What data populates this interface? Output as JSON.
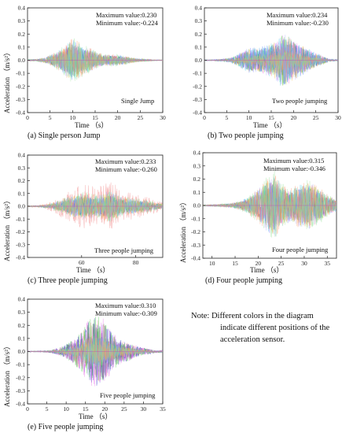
{
  "note": {
    "lines": [
      "Note: Different colors in the diagram",
      "indicate different positions of  the",
      "acceleration sensor."
    ]
  },
  "colors": {
    "sensors": [
      "#f08080",
      "#6f6fe8",
      "#1a1ab0",
      "#32c832",
      "#e860e8",
      "#f0c040",
      "#40c8e8",
      "#a0a0ff",
      "#ff9060",
      "#90e090"
    ]
  },
  "chart_data": [
    {
      "type": "line",
      "caption": "(a)  Single person Jump",
      "inner_label": "Single Jump",
      "annotations": [
        "Maximum value:0.230",
        "Minimum value:-0.224"
      ],
      "xlabel": "Time （s）",
      "ylabel": "Acceleration （m/s²）",
      "xlim": [
        0,
        30
      ],
      "ylim": [
        -0.4,
        0.4
      ],
      "xticks": [
        0,
        5,
        10,
        15,
        20,
        25,
        30
      ],
      "yticks": [
        -0.4,
        -0.3,
        -0.2,
        -0.1,
        0.0,
        0.1,
        0.2,
        0.3,
        0.4
      ],
      "series": [
        {
          "envelope": [
            [
              0,
              0.008
            ],
            [
              2,
              0.01
            ],
            [
              4,
              0.03
            ],
            [
              6,
              0.08
            ],
            [
              8,
              0.14
            ],
            [
              9.5,
              0.22
            ],
            [
              11,
              0.2
            ],
            [
              12.5,
              0.15
            ],
            [
              14,
              0.12
            ],
            [
              15.5,
              0.08
            ],
            [
              17,
              0.06
            ],
            [
              19,
              0.06
            ],
            [
              21,
              0.05
            ],
            [
              23,
              0.03
            ],
            [
              25,
              0.015
            ],
            [
              27,
              0.01
            ],
            [
              28.5,
              0.005
            ]
          ]
        }
      ]
    },
    {
      "type": "line",
      "caption": "(b)  Two people jumping",
      "inner_label": "Two people jumping",
      "annotations": [
        "Maximum value:0.234",
        "Minimum value:-0.230"
      ],
      "xlabel": "Time （s）",
      "ylabel": "",
      "xlim": [
        0,
        30
      ],
      "ylim": [
        -0.4,
        0.4
      ],
      "xticks": [
        0,
        5,
        10,
        15,
        20,
        25,
        30
      ],
      "yticks": [
        -0.4,
        -0.3,
        -0.2,
        -0.1,
        0.0,
        0.1,
        0.2,
        0.3,
        0.4
      ],
      "series": [
        {
          "envelope": [
            [
              0,
              0.005
            ],
            [
              2,
              0.005
            ],
            [
              4,
              0.01
            ],
            [
              6,
              0.02
            ],
            [
              8,
              0.06
            ],
            [
              10,
              0.1
            ],
            [
              12,
              0.1
            ],
            [
              14,
              0.12
            ],
            [
              16,
              0.16
            ],
            [
              17.5,
              0.23
            ],
            [
              19,
              0.2
            ],
            [
              21,
              0.14
            ],
            [
              23,
              0.1
            ],
            [
              25,
              0.06
            ],
            [
              27,
              0.03
            ],
            [
              28,
              0.01
            ],
            [
              30,
              0.005
            ]
          ]
        }
      ]
    },
    {
      "type": "line",
      "caption": "(c)  Three people jumping",
      "inner_label": "Three people jumping",
      "annotations": [
        "Maximum value:0.233",
        "Minimum value:-0.260"
      ],
      "xlabel": "Time （s）",
      "ylabel": "Acceleration （m/s²）",
      "xlim": [
        40,
        90
      ],
      "ylim": [
        -0.4,
        0.4
      ],
      "xticks": [
        60,
        80
      ],
      "yticks": [
        -0.4,
        -0.3,
        -0.2,
        -0.1,
        0.0,
        0.1,
        0.2,
        0.3,
        0.4
      ],
      "series": [
        {
          "envelope": [
            [
              40,
              0.006
            ],
            [
              44,
              0.01
            ],
            [
              48,
              0.03
            ],
            [
              52,
              0.08
            ],
            [
              56,
              0.14
            ],
            [
              60,
              0.18
            ],
            [
              63,
              0.17
            ],
            [
              66,
              0.14
            ],
            [
              70,
              0.22
            ],
            [
              72,
              0.18
            ],
            [
              75,
              0.12
            ],
            [
              80,
              0.1
            ],
            [
              84,
              0.08
            ],
            [
              88,
              0.05
            ],
            [
              90,
              0.03
            ]
          ]
        }
      ]
    },
    {
      "type": "line",
      "caption": "(d)  Four people jumping",
      "inner_label": "Four people jumping",
      "annotations": [
        "Maximum value:0.315",
        "Minimum value:-0.346"
      ],
      "xlabel": "Time （s）",
      "ylabel": "Acceleration （m/s²）",
      "xlim": [
        8,
        37
      ],
      "ylim": [
        -0.4,
        0.4
      ],
      "xticks": [
        10,
        15,
        20,
        25,
        30,
        35
      ],
      "yticks": [
        -0.4,
        -0.3,
        -0.2,
        -0.1,
        0.0,
        0.1,
        0.2,
        0.3,
        0.4
      ],
      "series": [
        {
          "envelope": [
            [
              8,
              0.005
            ],
            [
              11,
              0.01
            ],
            [
              14,
              0.02
            ],
            [
              16,
              0.04
            ],
            [
              18,
              0.08
            ],
            [
              20,
              0.15
            ],
            [
              22,
              0.25
            ],
            [
              23.5,
              0.3
            ],
            [
              25,
              0.2
            ],
            [
              27,
              0.15
            ],
            [
              29,
              0.2
            ],
            [
              31,
              0.22
            ],
            [
              33,
              0.17
            ],
            [
              35,
              0.1
            ],
            [
              37,
              0.05
            ]
          ]
        }
      ]
    },
    {
      "type": "line",
      "caption": "(e)  Five people jumping",
      "inner_label": "Five people jumping",
      "annotations": [
        "Maximum value:0.310",
        "Minimum value:-0.309"
      ],
      "xlabel": "Time （s）",
      "ylabel": "Acceleration （m/s²）",
      "xlim": [
        0,
        35
      ],
      "ylim": [
        -0.4,
        0.4
      ],
      "xticks": [
        0,
        5,
        10,
        15,
        20,
        25,
        30,
        35
      ],
      "yticks": [
        -0.4,
        -0.3,
        -0.2,
        -0.1,
        0.0,
        0.1,
        0.2,
        0.3,
        0.4
      ],
      "series": [
        {
          "envelope": [
            [
              0,
              0.004
            ],
            [
              3,
              0.005
            ],
            [
              6,
              0.01
            ],
            [
              9,
              0.04
            ],
            [
              12,
              0.1
            ],
            [
              14,
              0.18
            ],
            [
              16,
              0.26
            ],
            [
              18,
              0.3
            ],
            [
              20,
              0.25
            ],
            [
              22,
              0.15
            ],
            [
              24,
              0.1
            ],
            [
              26,
              0.08
            ],
            [
              28,
              0.05
            ],
            [
              30,
              0.03
            ],
            [
              32,
              0.02
            ],
            [
              33,
              0.01
            ]
          ]
        }
      ]
    }
  ]
}
